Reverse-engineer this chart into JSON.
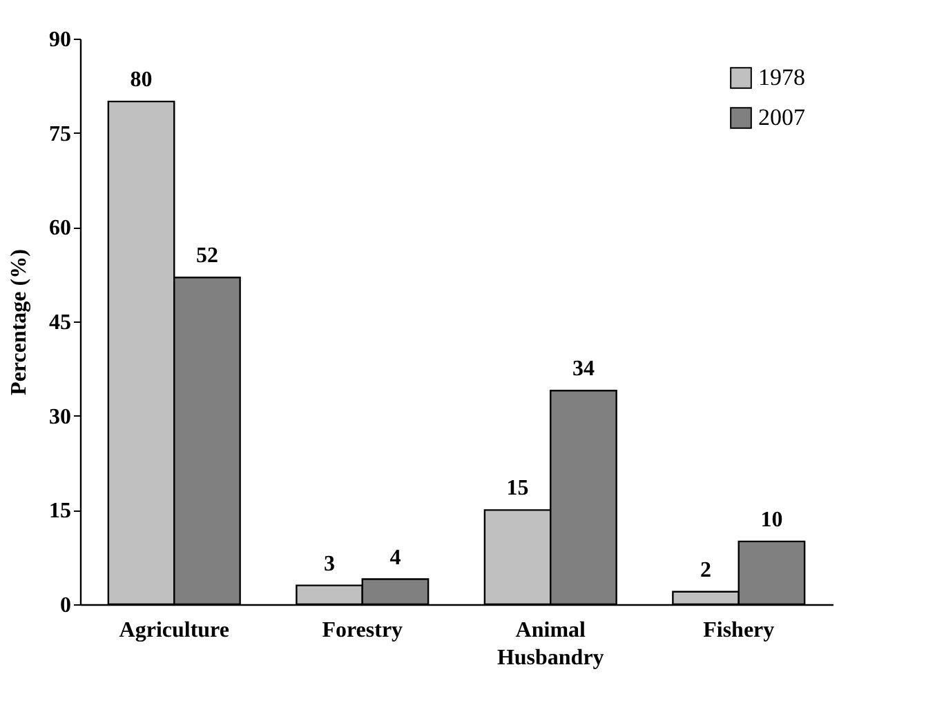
{
  "chart_data": {
    "type": "bar",
    "ylabel": "Percentage (%)",
    "categories": [
      "Agriculture",
      "Forestry",
      "Animal Husbandry",
      "Fishery"
    ],
    "series": [
      {
        "name": "1978",
        "color": "#c0c0c0",
        "values": [
          80,
          3,
          15,
          2
        ]
      },
      {
        "name": "2007",
        "color": "#808080",
        "values": [
          52,
          4,
          34,
          10
        ]
      }
    ],
    "ylim": [
      0,
      90
    ],
    "yticks": [
      0,
      15,
      30,
      45,
      60,
      75,
      90
    ],
    "grid": false,
    "legend": "top right",
    "data_labels": true
  }
}
